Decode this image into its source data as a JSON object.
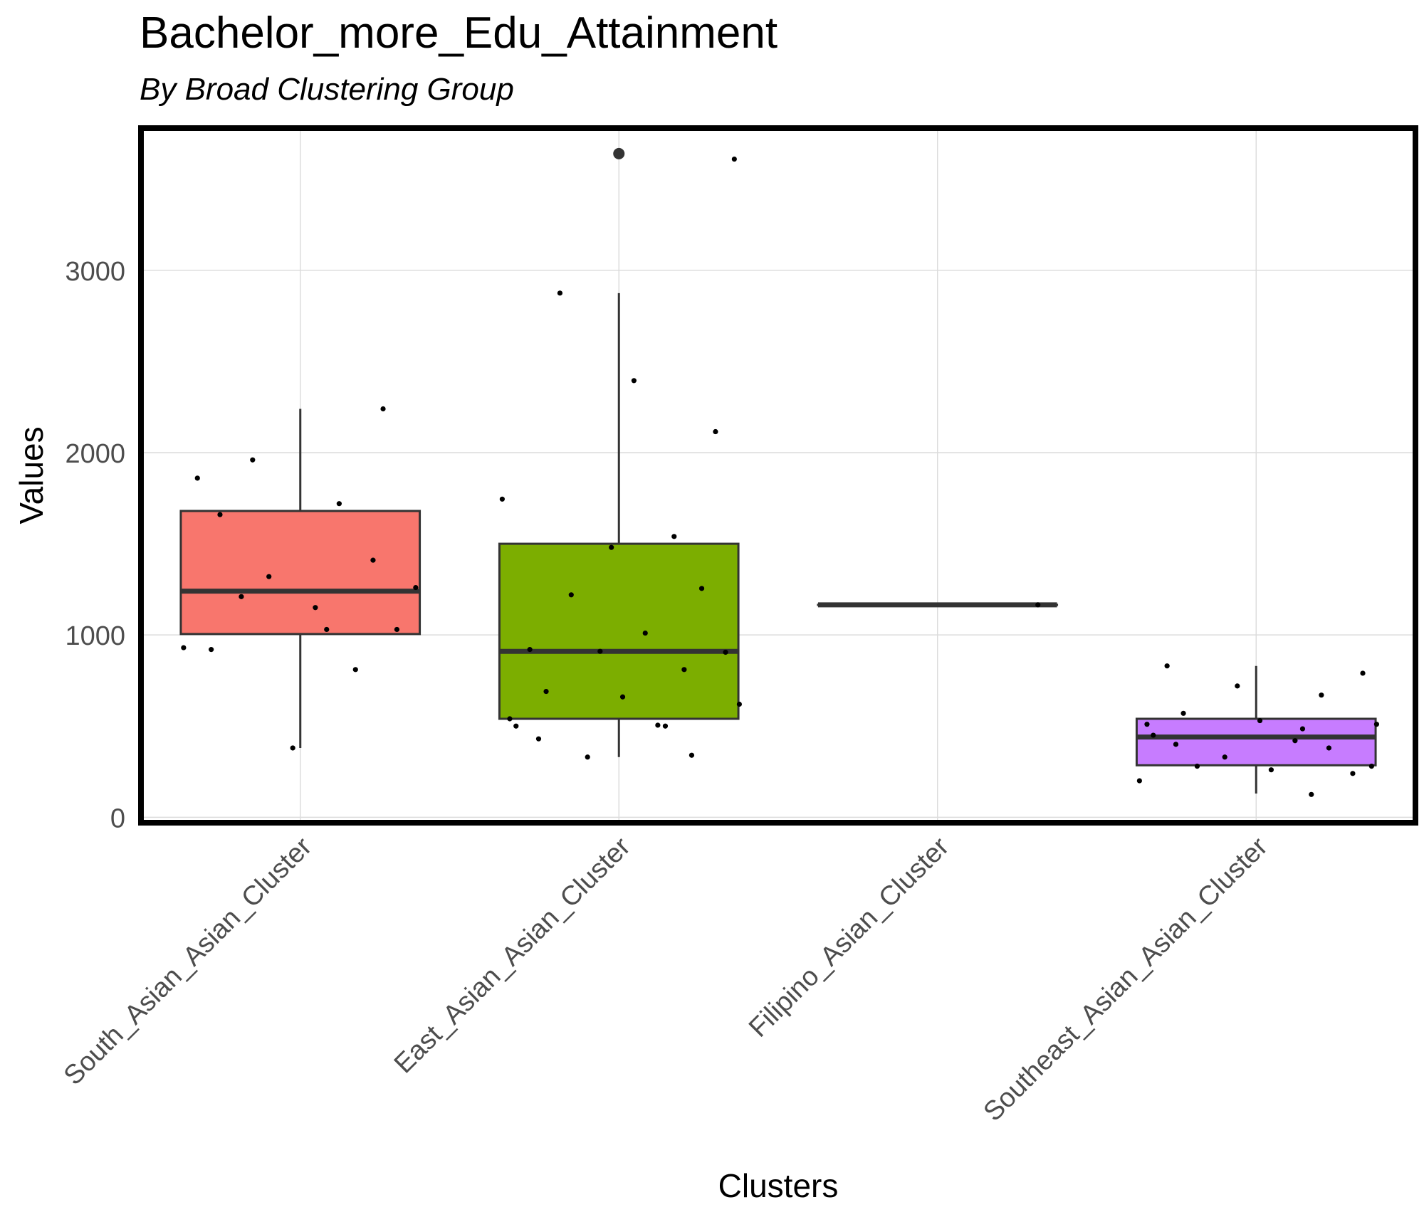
{
  "chart_data": {
    "type": "boxplot",
    "title": "Bachelor_more_Edu_Attainment",
    "subtitle": "By Broad Clustering Group",
    "xlabel": "Clusters",
    "ylabel": "Values",
    "ylim": [
      -30,
      3780
    ],
    "yticks": [
      0,
      1000,
      2000,
      3000
    ],
    "grid": true,
    "categories": [
      "South_Asian_Asian_Cluster",
      "East_Asian_Asian_Cluster",
      "Filipino_Asian_Cluster",
      "Southeast_Asian_Asian_Cluster"
    ],
    "boxes": [
      {
        "category": "South_Asian_Asian_Cluster",
        "color": "#F8766D",
        "whisker_low": 380,
        "q1": 1005,
        "median": 1240,
        "q3": 1680,
        "whisker_high": 2240,
        "outliers": []
      },
      {
        "category": "East_Asian_Asian_Cluster",
        "color": "#7CAE00",
        "whisker_low": 330,
        "q1": 540,
        "median": 910,
        "q3": 1500,
        "whisker_high": 2875,
        "outliers": [
          3640
        ]
      },
      {
        "category": "Filipino_Asian_Cluster",
        "color": "#00BFC4",
        "whisker_low": 1165,
        "q1": 1165,
        "median": 1165,
        "q3": 1165,
        "whisker_high": 1165,
        "outliers": []
      },
      {
        "category": "Southeast_Asian_Asian_Cluster",
        "color": "#C77CFF",
        "whisker_low": 130,
        "q1": 285,
        "median": 440,
        "q3": 540,
        "whisker_high": 830,
        "outliers": []
      }
    ],
    "points": [
      {
        "series": "South_Asian_Asian_Cluster",
        "values": [
          1860,
          1720,
          1660,
          1410,
          1320,
          1260,
          1210,
          1150,
          1030,
          930,
          810,
          380,
          2240,
          1960,
          1030,
          920
        ]
      },
      {
        "series": "East_Asian_Asian_Cluster",
        "values": [
          3610,
          2875,
          2395,
          2115,
          1745,
          1540,
          1480,
          1255,
          1220,
          1010,
          920,
          905,
          910,
          810,
          690,
          660,
          620,
          540,
          500,
          500,
          505,
          430,
          340,
          330
        ]
      },
      {
        "series": "Filipino_Asian_Cluster",
        "values": [
          1165
        ]
      },
      {
        "series": "Southeast_Asian_Asian_Cluster",
        "values": [
          830,
          790,
          720,
          670,
          570,
          530,
          510,
          510,
          485,
          450,
          420,
          400,
          380,
          330,
          280,
          280,
          260,
          240,
          200,
          125
        ]
      }
    ]
  }
}
